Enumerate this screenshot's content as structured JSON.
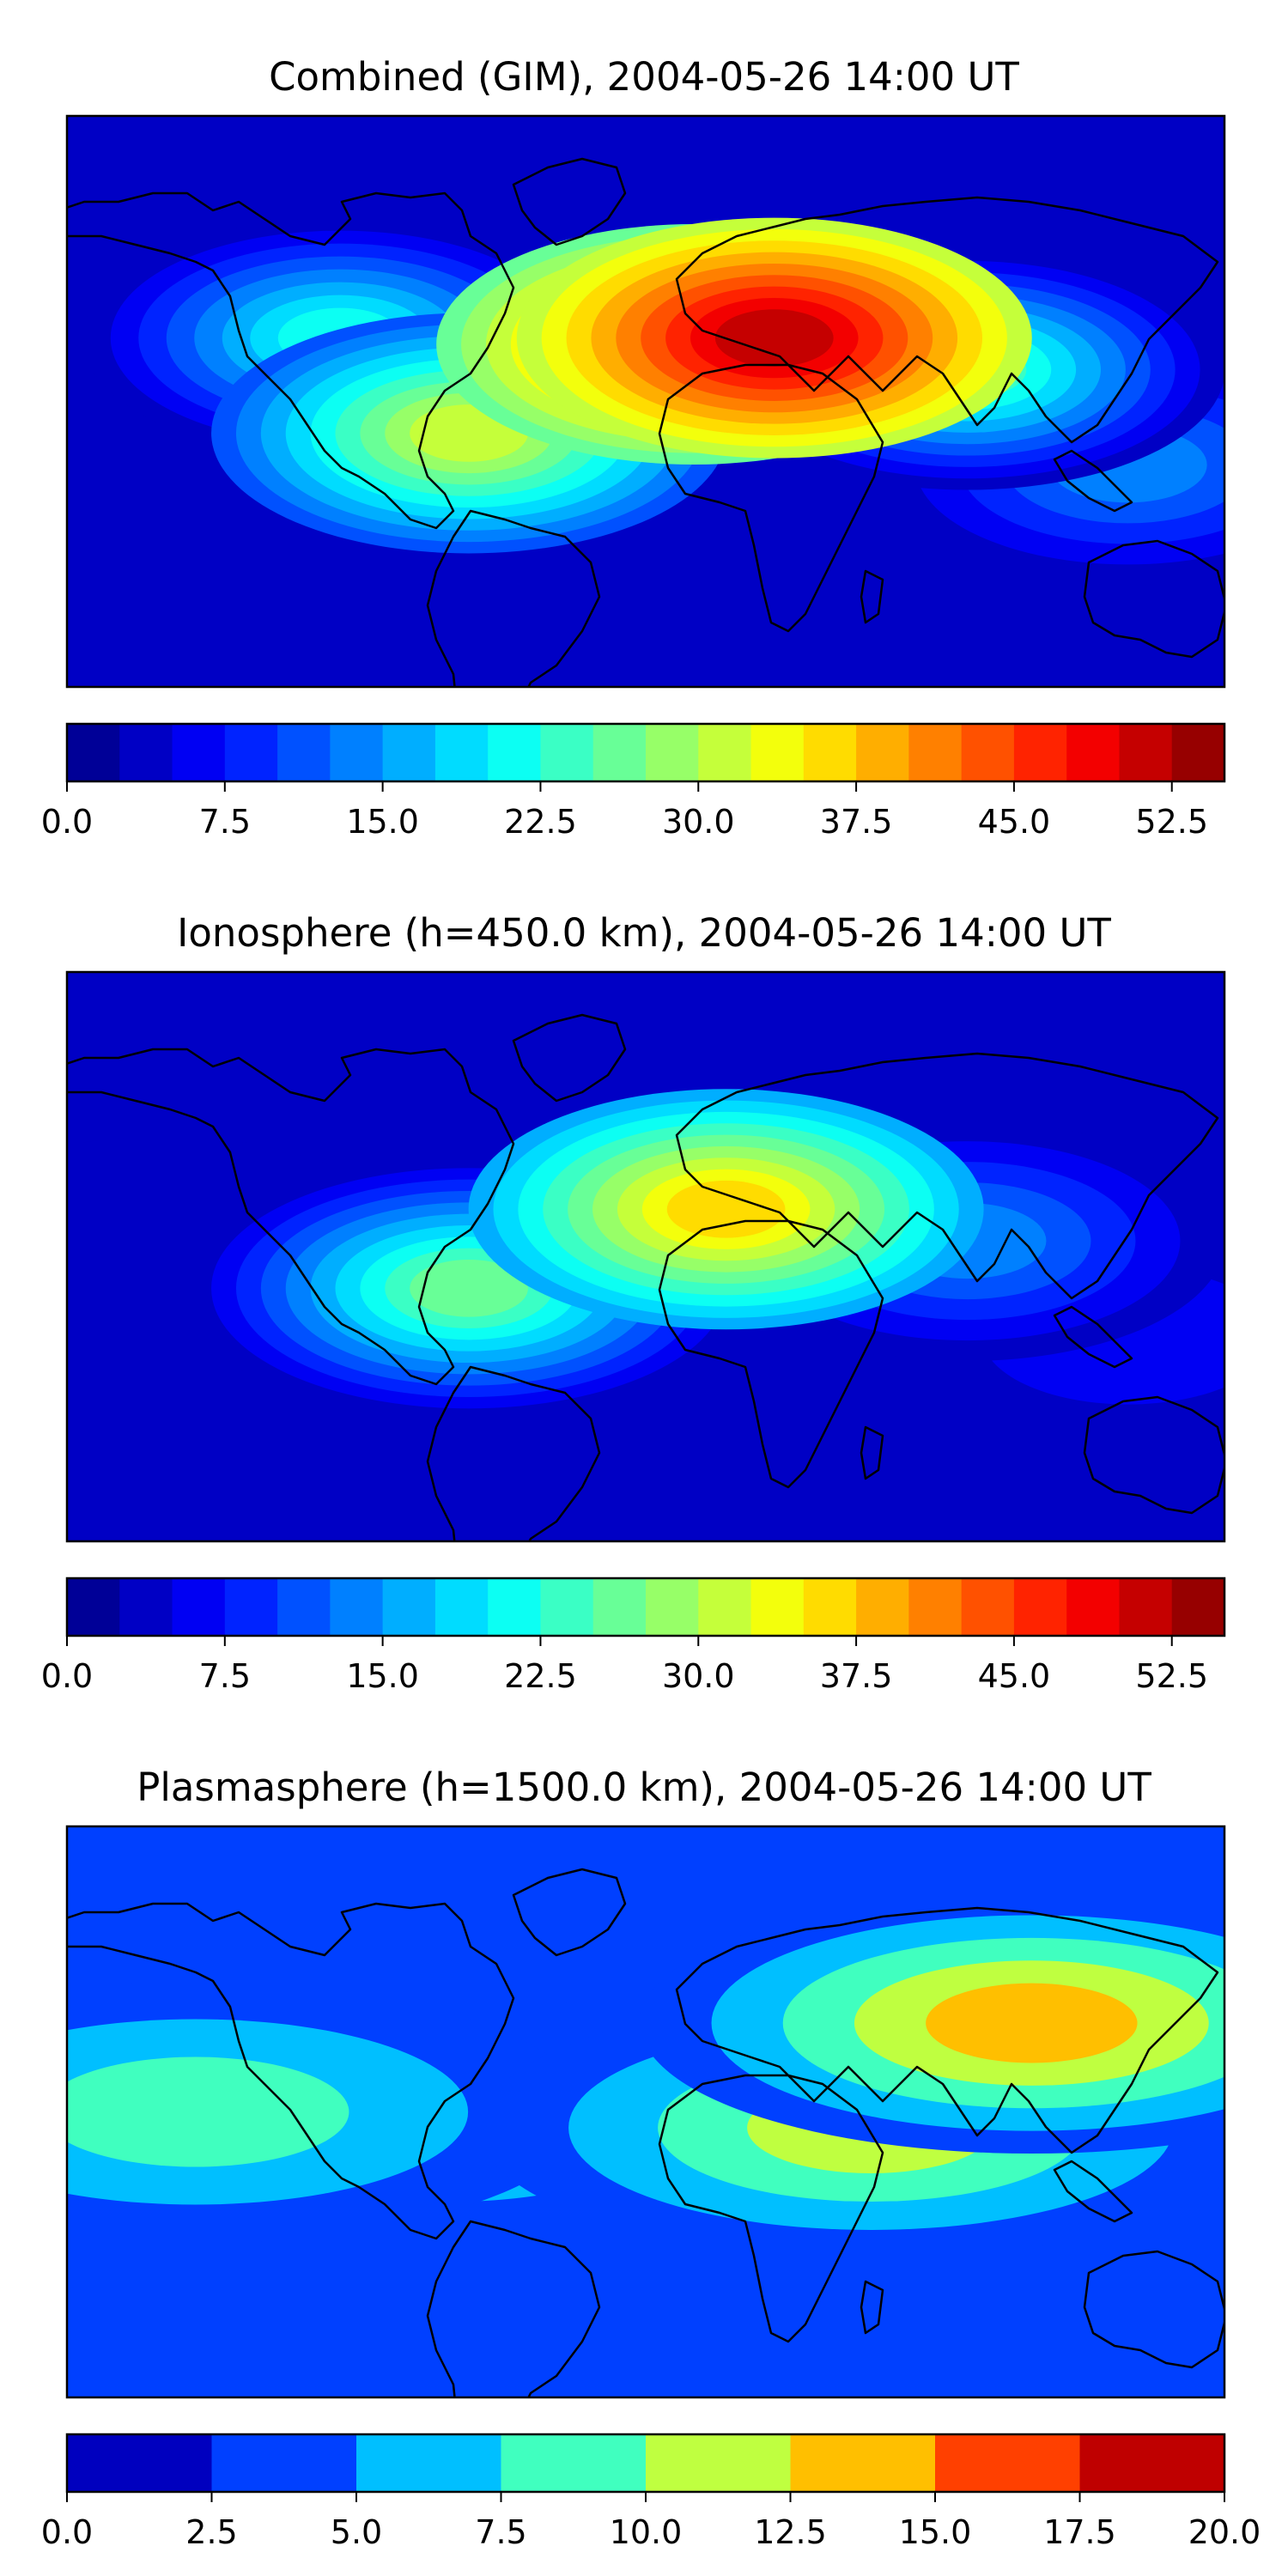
{
  "chart_data": [
    {
      "type": "heatmap",
      "title": "Combined (GIM), 2004-05-26 14:00 UT",
      "field": "TEC map (filled contours over world coastlines)",
      "colormap": "jet",
      "levels": [
        0.0,
        2.5,
        5.0,
        7.5,
        10.0,
        12.5,
        15.0,
        17.5,
        20.0,
        22.5,
        25.0,
        27.5,
        30.0,
        32.5,
        35.0,
        37.5,
        40.0,
        42.5,
        45.0,
        47.5,
        50.0,
        52.5,
        55.0
      ],
      "colorbar_ticks": [
        "0.0",
        "7.5",
        "15.0",
        "22.5",
        "30.0",
        "37.5",
        "45.0",
        "52.5"
      ],
      "colorbar_range": [
        0,
        55
      ],
      "features": [
        {
          "lon": 40,
          "lat": 20,
          "value": 52
        },
        {
          "lon": 15,
          "lat": 18,
          "value": 47
        },
        {
          "lon": -55,
          "lat": -10,
          "value": 30
        },
        {
          "lon": -95,
          "lat": 20,
          "value": 22
        },
        {
          "lon": 100,
          "lat": 10,
          "value": 24
        },
        {
          "lon": 150,
          "lat": -20,
          "value": 14
        }
      ]
    },
    {
      "type": "heatmap",
      "title": "Ionosphere  (h=450.0 km), 2004-05-26 14:00 UT",
      "field": "TEC map (filled contours over world coastlines)",
      "colormap": "jet",
      "levels": [
        0.0,
        2.5,
        5.0,
        7.5,
        10.0,
        12.5,
        15.0,
        17.5,
        20.0,
        22.5,
        25.0,
        27.5,
        30.0,
        32.5,
        35.0,
        37.5,
        40.0,
        42.5,
        45.0,
        47.5,
        50.0,
        52.5,
        55.0
      ],
      "colorbar_ticks": [
        "0.0",
        "7.5",
        "15.0",
        "22.5",
        "30.0",
        "37.5",
        "45.0",
        "52.5"
      ],
      "colorbar_range": [
        0,
        55
      ],
      "features": [
        {
          "lon": 25,
          "lat": 15,
          "value": 36
        },
        {
          "lon": -55,
          "lat": -10,
          "value": 27
        },
        {
          "lon": 100,
          "lat": 5,
          "value": 14
        },
        {
          "lon": -150,
          "lat": 0,
          "value": 4
        },
        {
          "lon": 150,
          "lat": -25,
          "value": 6
        }
      ]
    },
    {
      "type": "heatmap",
      "title": "Plasmasphere (h=1500.0 km), 2004-05-26 14:00 UT",
      "field": "TEC map (filled contours over world coastlines)",
      "colormap": "jet",
      "levels": [
        0.0,
        2.5,
        5.0,
        7.5,
        10.0,
        12.5,
        15.0,
        17.5,
        20.0
      ],
      "colorbar_ticks": [
        "0.0",
        "2.5",
        "5.0",
        "7.5",
        "10.0",
        "12.5",
        "15.0",
        "17.5",
        "20.0"
      ],
      "colorbar_range": [
        0,
        20
      ],
      "features": [
        {
          "lon": 120,
          "lat": 28,
          "value": 14
        },
        {
          "lon": 70,
          "lat": -5,
          "value": 11
        },
        {
          "lon": -140,
          "lat": 0,
          "value": 8
        },
        {
          "lon": -60,
          "lat": -5,
          "value": 6
        },
        {
          "lon": 0,
          "lat": 60,
          "value": 1.5
        },
        {
          "lon": 0,
          "lat": -60,
          "value": 1.5
        }
      ]
    }
  ]
}
